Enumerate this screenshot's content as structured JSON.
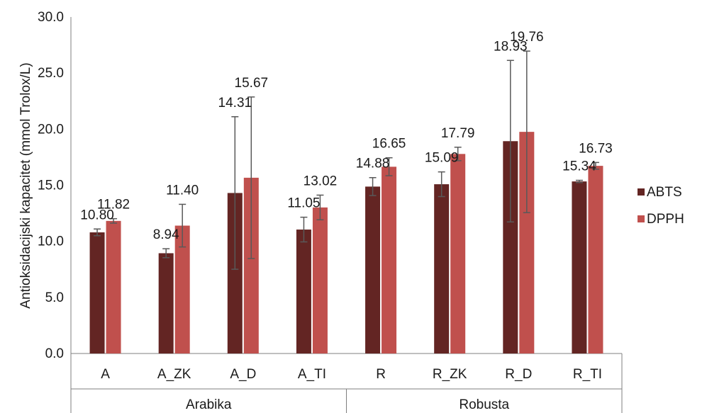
{
  "chart_data": {
    "type": "bar",
    "title": "",
    "ylabel": "Antioksidacijski kapacitet (mmol Trolox/L)",
    "ylim": [
      0,
      30
    ],
    "yticks": [
      "0.0",
      "5.0",
      "10.0",
      "15.0",
      "20.0",
      "25.0",
      "30.0"
    ],
    "grid": false,
    "legend_position": "right",
    "categories": [
      "A",
      "A_ZK",
      "A_D",
      "A_TI",
      "R",
      "R_ZK",
      "R_D",
      "R_TI"
    ],
    "groups": [
      {
        "label": "Arabika",
        "categories": [
          "A",
          "A_ZK",
          "A_D",
          "A_TI"
        ]
      },
      {
        "label": "Robusta",
        "categories": [
          "R",
          "R_ZK",
          "R_D",
          "R_TI"
        ]
      }
    ],
    "series": [
      {
        "name": "ABTS",
        "color": "#632523",
        "values": [
          10.8,
          8.94,
          14.31,
          11.05,
          14.88,
          15.09,
          18.93,
          15.34
        ],
        "labels": [
          "10.80",
          "8.94",
          "14.31",
          "11.05",
          "14.88",
          "15.09",
          "18.93",
          "15.34"
        ],
        "errors": [
          0.3,
          0.4,
          6.8,
          1.1,
          0.8,
          1.1,
          7.2,
          0.1
        ]
      },
      {
        "name": "DPPH",
        "color": "#C0504D",
        "values": [
          11.82,
          11.4,
          15.67,
          13.02,
          16.65,
          17.79,
          19.76,
          16.73
        ],
        "labels": [
          "11.82",
          "11.40",
          "15.67",
          "13.02",
          "16.65",
          "17.79",
          "19.76",
          "16.73"
        ],
        "errors": [
          0.2,
          1.9,
          7.2,
          1.1,
          0.8,
          0.6,
          7.2,
          0.3
        ]
      }
    ]
  }
}
